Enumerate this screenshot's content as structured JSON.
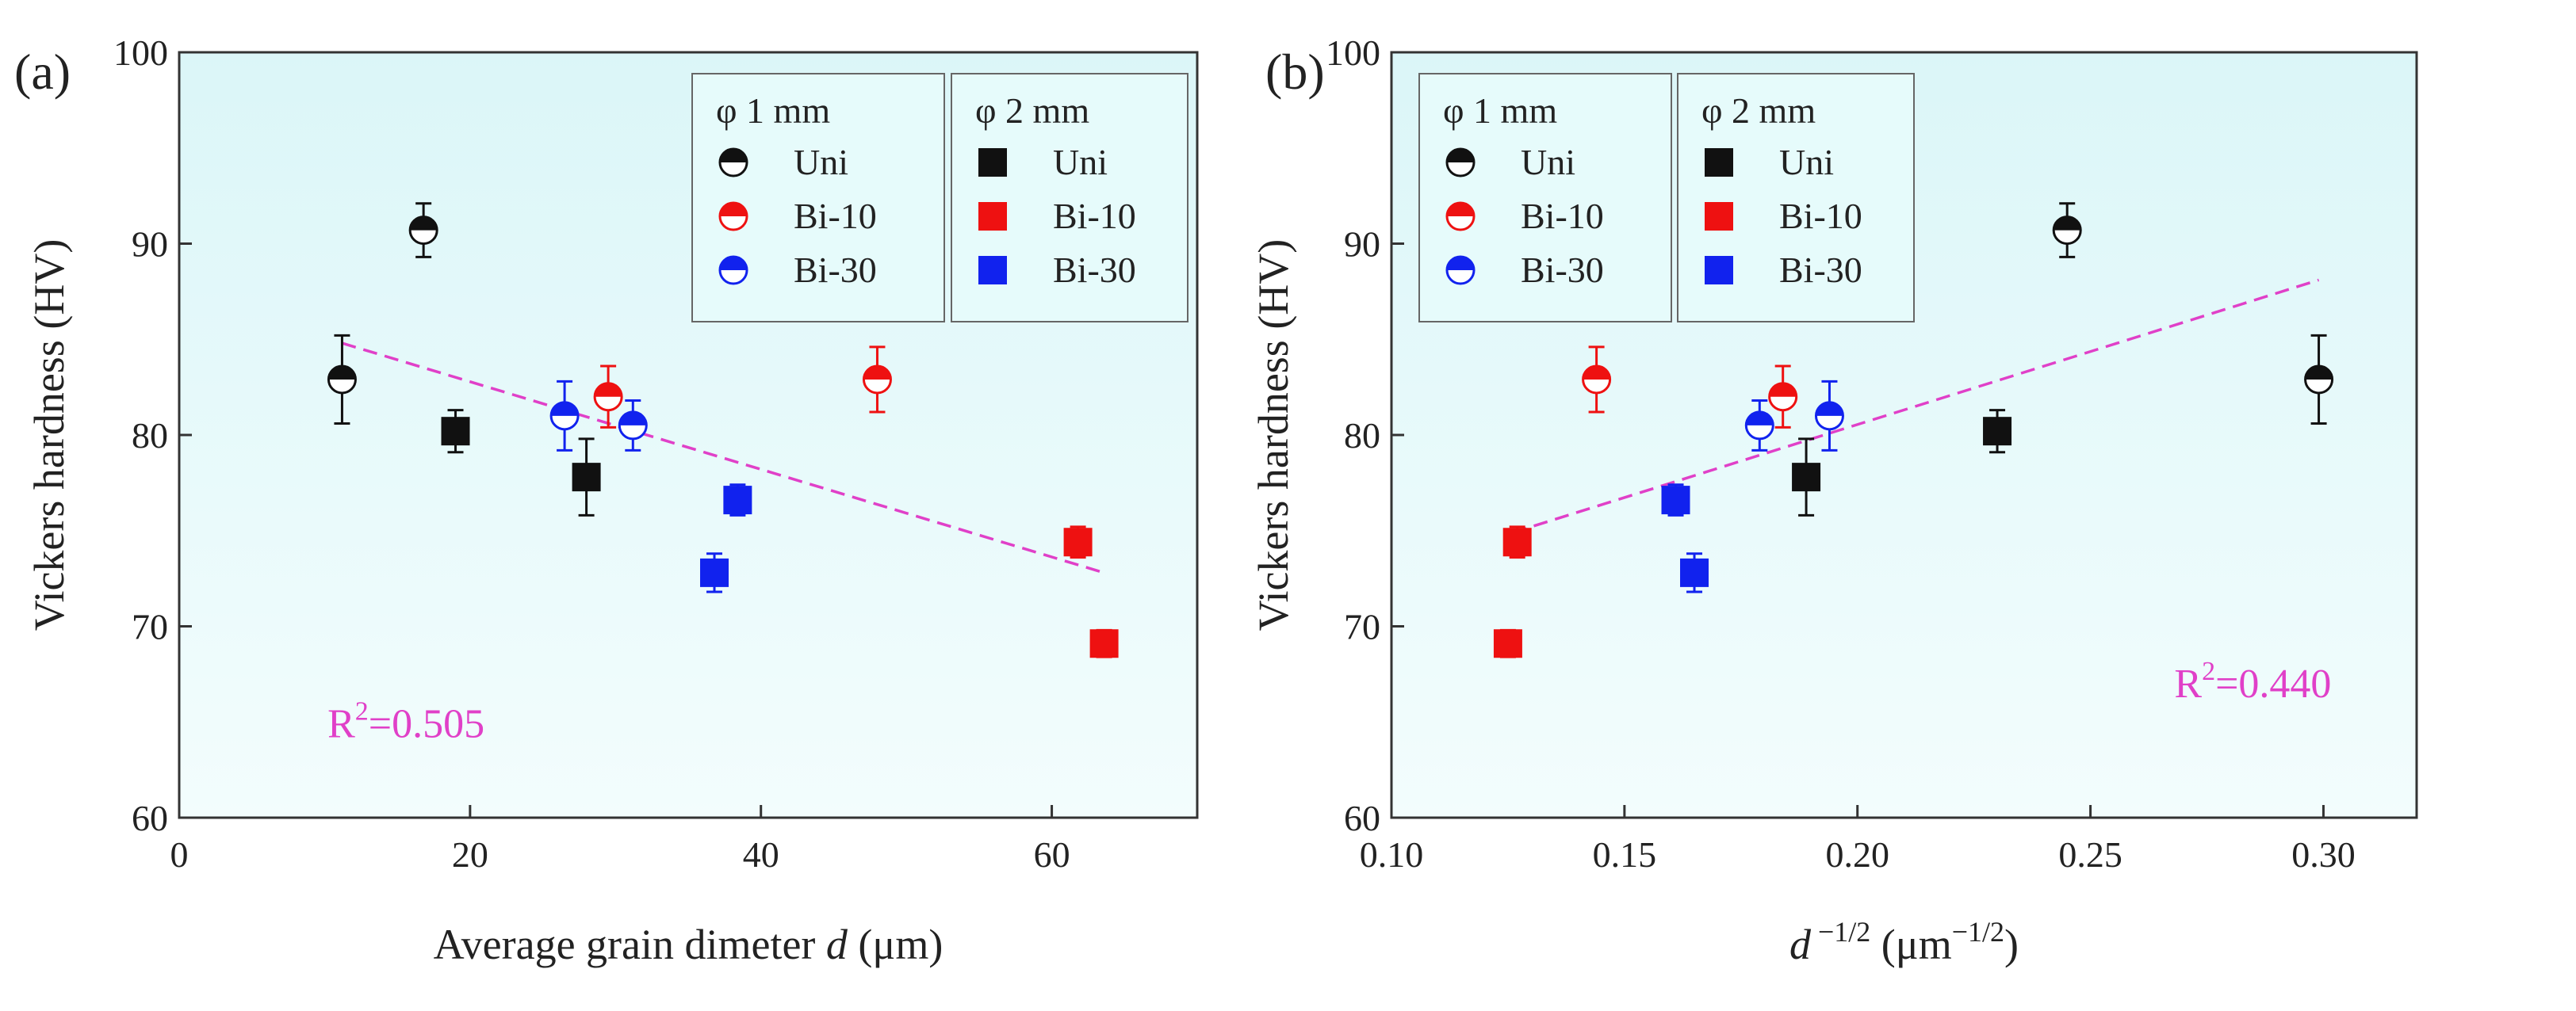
{
  "colors": {
    "uni": "#111111",
    "bi10": "#ee1111",
    "bi30": "#1122ee",
    "fit": "#e040c8",
    "bg_top": "#dbf6f8",
    "bg_bottom": "#f3fdfd"
  },
  "chart_data": [
    {
      "type": "scatter",
      "panel_label": "(a)",
      "xlabel": "Average grain dimeter d (μm)",
      "xlabel_parts": [
        "Average grain dimeter ",
        "d",
        " (μm)"
      ],
      "ylabel": "Vickers hardness (HV)",
      "xlim": [
        0,
        70
      ],
      "ylim": [
        60,
        100
      ],
      "xticks": [
        0,
        20,
        40,
        60
      ],
      "xtick_labels": [
        "0",
        "20",
        "40",
        "60"
      ],
      "yticks": [
        60,
        70,
        80,
        90,
        100
      ],
      "ytick_labels": [
        "60",
        "70",
        "80",
        "90",
        "100"
      ],
      "legend": [
        {
          "title": "φ 1 mm",
          "entries": [
            {
              "label": "Uni",
              "marker": "half-circle",
              "color_key": "uni"
            },
            {
              "label": "Bi-10",
              "marker": "half-circle",
              "color_key": "bi10"
            },
            {
              "label": "Bi-30",
              "marker": "half-circle",
              "color_key": "bi30"
            }
          ]
        },
        {
          "title": "φ 2 mm",
          "entries": [
            {
              "label": "Uni",
              "marker": "square",
              "color_key": "uni"
            },
            {
              "label": "Bi-10",
              "marker": "square",
              "color_key": "bi10"
            },
            {
              "label": "Bi-30",
              "marker": "square",
              "color_key": "bi30"
            }
          ]
        }
      ],
      "series": [
        {
          "name": "φ 1 mm Uni",
          "marker": "half-circle",
          "color_key": "uni",
          "points": [
            {
              "x": 11.2,
              "y": 82.9,
              "err": 2.3
            },
            {
              "x": 16.8,
              "y": 90.7,
              "err": 1.4
            }
          ]
        },
        {
          "name": "φ 1 mm Bi-10",
          "marker": "half-circle",
          "color_key": "bi10",
          "points": [
            {
              "x": 29.5,
              "y": 82.0,
              "err": 1.6
            },
            {
              "x": 48.0,
              "y": 82.9,
              "err": 1.7
            }
          ]
        },
        {
          "name": "φ 1 mm Bi-30",
          "marker": "half-circle",
          "color_key": "bi30",
          "points": [
            {
              "x": 26.5,
              "y": 81.0,
              "err": 1.8
            },
            {
              "x": 31.2,
              "y": 80.5,
              "err": 1.3
            }
          ]
        },
        {
          "name": "φ 2 mm Uni",
          "marker": "square",
          "color_key": "uni",
          "points": [
            {
              "x": 19.0,
              "y": 80.2,
              "err": 1.1
            },
            {
              "x": 28.0,
              "y": 77.8,
              "err": 2.0
            }
          ]
        },
        {
          "name": "φ 2 mm Bi-10",
          "marker": "square",
          "color_key": "bi10",
          "points": [
            {
              "x": 61.8,
              "y": 74.4,
              "err": 0.8
            },
            {
              "x": 63.6,
              "y": 69.1,
              "err": 0.7
            }
          ]
        },
        {
          "name": "φ 2 mm Bi-30",
          "marker": "square",
          "color_key": "bi30",
          "points": [
            {
              "x": 36.8,
              "y": 72.8,
              "err": 1.0
            },
            {
              "x": 38.4,
              "y": 76.6,
              "err": 0.8
            }
          ]
        }
      ],
      "fit_line": {
        "x": [
          11.2,
          63.6
        ],
        "y": [
          84.8,
          72.8
        ]
      },
      "annotation": "R²=0.505",
      "annotation_base": "R",
      "annotation_sup": "2",
      "annotation_rest": "=0.505",
      "annotation_at": {
        "x": 10.2,
        "y": 64.2
      }
    },
    {
      "type": "scatter",
      "panel_label": "(b)",
      "xlabel": "d^-1/2 (μm^-1/2)",
      "xlabel_parts": [
        "d",
        " −1/2",
        " (μm",
        "−1/2",
        ")"
      ],
      "ylabel": "Vickers hardness (HV)",
      "xlim": [
        0.1,
        0.32
      ],
      "ylim": [
        60,
        100
      ],
      "xticks": [
        0.1,
        0.15,
        0.2,
        0.25,
        0.3
      ],
      "xtick_labels": [
        "0.10",
        "0.15",
        "0.20",
        "0.25",
        "0.30"
      ],
      "yticks": [
        60,
        70,
        80,
        90,
        100
      ],
      "ytick_labels": [
        "60",
        "70",
        "80",
        "90",
        "100"
      ],
      "legend": [
        {
          "title": "φ 1 mm",
          "entries": [
            {
              "label": "Uni",
              "marker": "half-circle",
              "color_key": "uni"
            },
            {
              "label": "Bi-10",
              "marker": "half-circle",
              "color_key": "bi10"
            },
            {
              "label": "Bi-30",
              "marker": "half-circle",
              "color_key": "bi30"
            }
          ]
        },
        {
          "title": "φ 2 mm",
          "entries": [
            {
              "label": "Uni",
              "marker": "square",
              "color_key": "uni"
            },
            {
              "label": "Bi-10",
              "marker": "square",
              "color_key": "bi10"
            },
            {
              "label": "Bi-30",
              "marker": "square",
              "color_key": "bi30"
            }
          ]
        }
      ],
      "series": [
        {
          "name": "φ 1 mm Uni",
          "marker": "half-circle",
          "color_key": "uni",
          "points": [
            {
              "x": 0.299,
              "y": 82.9,
              "err": 2.3
            },
            {
              "x": 0.245,
              "y": 90.7,
              "err": 1.4
            }
          ]
        },
        {
          "name": "φ 1 mm Bi-10",
          "marker": "half-circle",
          "color_key": "bi10",
          "points": [
            {
              "x": 0.184,
              "y": 82.0,
              "err": 1.6
            },
            {
              "x": 0.144,
              "y": 82.9,
              "err": 1.7
            }
          ]
        },
        {
          "name": "φ 1 mm Bi-30",
          "marker": "half-circle",
          "color_key": "bi30",
          "points": [
            {
              "x": 0.194,
              "y": 81.0,
              "err": 1.8
            },
            {
              "x": 0.179,
              "y": 80.5,
              "err": 1.3
            }
          ]
        },
        {
          "name": "φ 2 mm Uni",
          "marker": "square",
          "color_key": "uni",
          "points": [
            {
              "x": 0.23,
              "y": 80.2,
              "err": 1.1
            },
            {
              "x": 0.189,
              "y": 77.8,
              "err": 2.0
            }
          ]
        },
        {
          "name": "φ 2 mm Bi-10",
          "marker": "square",
          "color_key": "bi10",
          "points": [
            {
              "x": 0.127,
              "y": 74.4,
              "err": 0.8
            },
            {
              "x": 0.125,
              "y": 69.1,
              "err": 0.7
            }
          ]
        },
        {
          "name": "φ 2 mm Bi-30",
          "marker": "square",
          "color_key": "bi30",
          "points": [
            {
              "x": 0.165,
              "y": 72.8,
              "err": 1.0
            },
            {
              "x": 0.161,
              "y": 76.6,
              "err": 0.8
            }
          ]
        }
      ],
      "fit_line": {
        "x": [
          0.126,
          0.299
        ],
        "y": [
          74.9,
          88.1
        ]
      },
      "annotation": "R²=0.440",
      "annotation_base": "R",
      "annotation_sup": "2",
      "annotation_rest": "=0.440",
      "annotation_at": {
        "x": 0.268,
        "y": 66.3
      }
    }
  ]
}
